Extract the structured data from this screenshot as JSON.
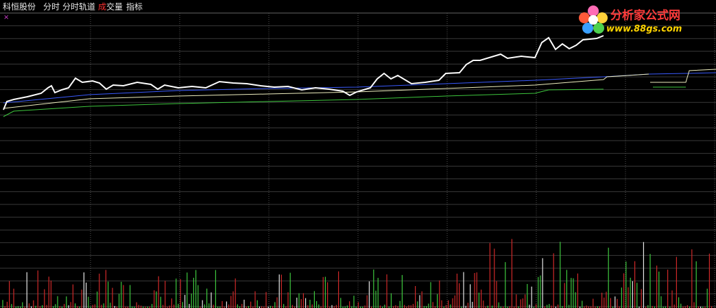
{
  "header": {
    "stock": "科恒股份",
    "tabs": [
      "分时",
      "分时轨道"
    ],
    "volume_tab": {
      "part1": "成",
      "part2": "交量"
    },
    "indicator_tab": "指标"
  },
  "logo": {
    "title": "分析家公式网",
    "url": "www.88gs.com"
  },
  "close_icon": "×"
}
